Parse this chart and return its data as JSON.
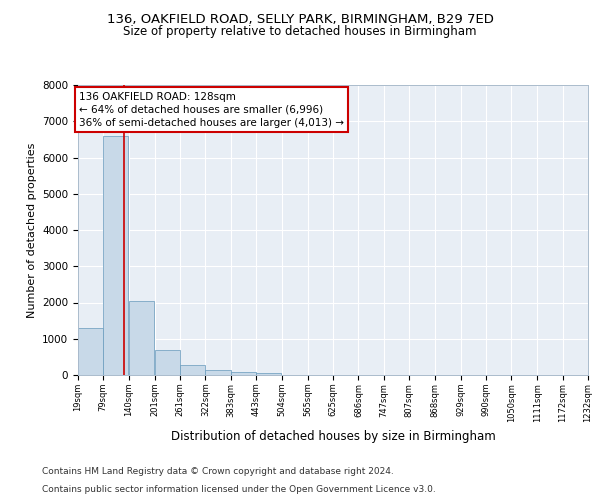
{
  "title1": "136, OAKFIELD ROAD, SELLY PARK, BIRMINGHAM, B29 7ED",
  "title2": "Size of property relative to detached houses in Birmingham",
  "xlabel": "Distribution of detached houses by size in Birmingham",
  "ylabel": "Number of detached properties",
  "bar_values": [
    1300,
    6600,
    2050,
    680,
    280,
    130,
    80,
    60,
    10,
    5,
    3,
    2,
    1,
    1,
    0,
    0,
    0,
    0,
    0,
    0
  ],
  "bin_edges": [
    19,
    79,
    140,
    201,
    261,
    322,
    383,
    443,
    504,
    565,
    625,
    686,
    747,
    807,
    868,
    929,
    990,
    1050,
    1111,
    1172,
    1232
  ],
  "tick_labels": [
    "19sqm",
    "79sqm",
    "140sqm",
    "201sqm",
    "261sqm",
    "322sqm",
    "383sqm",
    "443sqm",
    "504sqm",
    "565sqm",
    "625sqm",
    "686sqm",
    "747sqm",
    "807sqm",
    "868sqm",
    "929sqm",
    "990sqm",
    "1050sqm",
    "1111sqm",
    "1172sqm",
    "1232sqm"
  ],
  "bar_color": "#c8d9e8",
  "bar_edgecolor": "#6699bb",
  "vline_x": 128,
  "vline_color": "#cc0000",
  "annotation_line1": "136 OAKFIELD ROAD: 128sqm",
  "annotation_line2": "← 64% of detached houses are smaller (6,996)",
  "annotation_line3": "36% of semi-detached houses are larger (4,013) →",
  "annotation_box_color": "#cc0000",
  "ylim": [
    0,
    8000
  ],
  "yticks": [
    0,
    1000,
    2000,
    3000,
    4000,
    5000,
    6000,
    7000,
    8000
  ],
  "plot_bg_color": "#e8eef5",
  "grid_color": "#ffffff",
  "footer1": "Contains HM Land Registry data © Crown copyright and database right 2024.",
  "footer2": "Contains public sector information licensed under the Open Government Licence v3.0.",
  "title_fontsize": 9.5,
  "subtitle_fontsize": 8.5,
  "annotation_fontsize": 7.5,
  "footer_fontsize": 6.5,
  "ylabel_fontsize": 8,
  "xlabel_fontsize": 8.5
}
